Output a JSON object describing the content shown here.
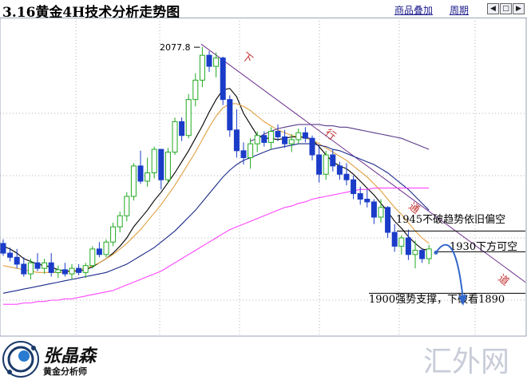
{
  "header": {
    "title": "3.16黄金4H技术分析走势图",
    "overlay_label": "商品叠加",
    "period_label": "周期"
  },
  "icons": {
    "nav_left": "arrow-left-icon",
    "nav_box": "window-icon",
    "nav_right": "arrow-right-icon"
  },
  "brand": {
    "name": "张晶森",
    "subtitle": "黄金分析师",
    "watermark": "汇外网"
  },
  "colors": {
    "up": "#22aa22",
    "down": "#1a3cc8",
    "ma_black": "#000000",
    "ma_orange": "#e0a040",
    "ma_navy": "#1a2a8a",
    "ma_purple": "#5a3a8a",
    "ma_magenta": "#ff44ff",
    "trend": "#6a2a8a",
    "arrow": "#3366cc"
  },
  "chart_data": {
    "type": "candlestick",
    "ylim": [
      1880,
      2090
    ],
    "max_label": "2077.8",
    "trend_text": [
      "下",
      "行",
      "通",
      "道"
    ],
    "annotations": [
      "1945不破趋势依旧偏空",
      "1930下方可空",
      "1900强势支撑，下破看1890"
    ],
    "levels": [
      1945,
      1930,
      1900
    ],
    "candles": [
      [
        1936,
        1939,
        1927,
        1929
      ],
      [
        1929,
        1933,
        1923,
        1926
      ],
      [
        1926,
        1932,
        1918,
        1921
      ],
      [
        1921,
        1926,
        1912,
        1914
      ],
      [
        1914,
        1925,
        1910,
        1922
      ],
      [
        1922,
        1929,
        1916,
        1918
      ],
      [
        1918,
        1925,
        1914,
        1922
      ],
      [
        1922,
        1929,
        1912,
        1915
      ],
      [
        1915,
        1920,
        1911,
        1917
      ],
      [
        1917,
        1922,
        1912,
        1914
      ],
      [
        1914,
        1921,
        1910,
        1918
      ],
      [
        1918,
        1921,
        1913,
        1915
      ],
      [
        1915,
        1922,
        1911,
        1920
      ],
      [
        1920,
        1934,
        1918,
        1932
      ],
      [
        1932,
        1937,
        1926,
        1928
      ],
      [
        1928,
        1939,
        1926,
        1937
      ],
      [
        1937,
        1951,
        1934,
        1948
      ],
      [
        1948,
        1959,
        1944,
        1956
      ],
      [
        1956,
        1973,
        1952,
        1970
      ],
      [
        1970,
        1994,
        1967,
        1992
      ],
      [
        1992,
        2003,
        1979,
        1981
      ],
      [
        1981,
        1998,
        1977,
        1987
      ],
      [
        1987,
        2006,
        1983,
        2004
      ],
      [
        2004,
        2003,
        1975,
        1982
      ],
      [
        1982,
        2005,
        1980,
        2002
      ],
      [
        2002,
        2027,
        2000,
        2024
      ],
      [
        2024,
        2027,
        2010,
        2014
      ],
      [
        2014,
        2044,
        2012,
        2040
      ],
      [
        2040,
        2059,
        2035,
        2054
      ],
      [
        2054,
        2078,
        2049,
        2072
      ],
      [
        2072,
        2075,
        2060,
        2064
      ],
      [
        2064,
        2074,
        2056,
        2070
      ],
      [
        2070,
        2071,
        2036,
        2040
      ],
      [
        2040,
        2043,
        2013,
        2018
      ],
      [
        2018,
        2033,
        1998,
        2003
      ],
      [
        2003,
        2009,
        1993,
        1998
      ],
      [
        1998,
        2012,
        1990,
        2008
      ],
      [
        2008,
        2017,
        2002,
        2014
      ],
      [
        2014,
        2017,
        2006,
        2009
      ],
      [
        2009,
        2020,
        2004,
        2017
      ],
      [
        2017,
        2022,
        2010,
        2013
      ],
      [
        2013,
        2018,
        2005,
        2008
      ],
      [
        2008,
        2015,
        2002,
        2011
      ],
      [
        2011,
        2019,
        2008,
        2016
      ],
      [
        2016,
        2020,
        2009,
        2012
      ],
      [
        2012,
        2014,
        1996,
        2000
      ],
      [
        2000,
        2006,
        1980,
        1986
      ],
      [
        1986,
        2003,
        1982,
        2000
      ],
      [
        2000,
        2004,
        1988,
        1992
      ],
      [
        1992,
        1995,
        1982,
        1986
      ],
      [
        1986,
        1994,
        1978,
        1982
      ],
      [
        1982,
        1985,
        1968,
        1972
      ],
      [
        1972,
        1977,
        1964,
        1968
      ],
      [
        1968,
        1975,
        1962,
        1966
      ],
      [
        1966,
        1968,
        1950,
        1955
      ],
      [
        1955,
        1968,
        1951,
        1962
      ],
      [
        1962,
        1963,
        1940,
        1944
      ],
      [
        1944,
        1950,
        1930,
        1934
      ],
      [
        1934,
        1942,
        1928,
        1940
      ],
      [
        1940,
        1946,
        1924,
        1928
      ],
      [
        1928,
        1938,
        1918,
        1931
      ],
      [
        1931,
        1932,
        1922,
        1925
      ],
      [
        1925,
        1935,
        1921,
        1932
      ]
    ],
    "ma_lines": [
      {
        "color": "#000000",
        "values": [
          1934,
          1932,
          1929,
          1925,
          1923,
          1921,
          1920,
          1919,
          1917,
          1916,
          1916,
          1916,
          1917,
          1919,
          1922,
          1925,
          1929,
          1934,
          1940,
          1948,
          1954,
          1960,
          1967,
          1973,
          1980,
          1987,
          1995,
          2003,
          2012,
          2021,
          2031,
          2040,
          2047,
          2048,
          2042,
          2030,
          2022,
          2014,
          2012,
          2012,
          2011,
          2012,
          2013,
          2013,
          2013,
          2011,
          2006,
          2000,
          1995,
          1992,
          1990,
          1986,
          1981,
          1976,
          1971,
          1965,
          1959,
          1952,
          1947,
          1941,
          1936,
          1932,
          1931
        ]
      },
      {
        "color": "#e0a040",
        "values": [
          1920,
          1919,
          1918,
          1917,
          1916,
          1915,
          1915,
          1915,
          1915,
          1915,
          1916,
          1917,
          1918,
          1920,
          1922,
          1925,
          1928,
          1932,
          1936,
          1941,
          1946,
          1952,
          1958,
          1964,
          1971,
          1978,
          1986,
          1994,
          2002,
          2011,
          2020,
          2028,
          2034,
          2037,
          2037,
          2035,
          2032,
          2028,
          2024,
          2021,
          2018,
          2016,
          2014,
          2013,
          2012,
          2011,
          2008,
          2005,
          2002,
          1999,
          1996,
          1992,
          1988,
          1984,
          1979,
          1974,
          1968,
          1962,
          1957,
          1951,
          1945,
          1940,
          1936
        ]
      },
      {
        "color": "#1a2a8a",
        "values": [
          1900,
          1901,
          1902,
          1903,
          1904,
          1905,
          1906,
          1907,
          1908,
          1909,
          1910,
          1911,
          1912,
          1913,
          1914,
          1915,
          1917,
          1919,
          1921,
          1924,
          1927,
          1930,
          1933,
          1937,
          1941,
          1945,
          1950,
          1955,
          1960,
          1966,
          1972,
          1978,
          1984,
          1989,
          1993,
          1996,
          1998,
          2000,
          2002,
          2004,
          2005,
          2006,
          2007,
          2008,
          2008,
          2008,
          2007,
          2006,
          2004,
          2003,
          2001,
          1999,
          1997,
          1995,
          1993,
          1990,
          1987,
          1983,
          1979,
          1975,
          1970,
          1965,
          1960
        ]
      },
      {
        "color": "#5a3a8a",
        "values": [
          null,
          null,
          null,
          null,
          null,
          null,
          null,
          null,
          null,
          null,
          null,
          null,
          null,
          null,
          null,
          null,
          null,
          null,
          null,
          null,
          null,
          null,
          null,
          null,
          null,
          null,
          null,
          null,
          null,
          null,
          null,
          null,
          null,
          null,
          null,
          null,
          2010,
          2012,
          2015,
          2017,
          2019,
          2020,
          2021,
          2022,
          2022,
          2022,
          2022,
          2021,
          2021,
          2020,
          2020,
          2019,
          2018,
          2017,
          2016,
          2015,
          2014,
          2013,
          2012,
          2010,
          2008,
          2006,
          2004
        ]
      },
      {
        "color": "#ff44ff",
        "values": [
          1892,
          1892,
          1892,
          1893,
          1893,
          1894,
          1894,
          1895,
          1895,
          1896,
          1896,
          1897,
          1898,
          1899,
          1900,
          1901,
          1902,
          1904,
          1906,
          1908,
          1910,
          1912,
          1914,
          1916,
          1919,
          1922,
          1925,
          1928,
          1931,
          1934,
          1937,
          1940,
          1943,
          1946,
          1948,
          1950,
          1952,
          1954,
          1956,
          1958,
          1960,
          1962,
          1963,
          1965,
          1966,
          1968,
          1969,
          1970,
          1971,
          1972,
          1973,
          1974,
          1975,
          1975,
          1976,
          1976,
          1976,
          1976,
          1976,
          1976,
          1976,
          1976,
          1976
        ]
      }
    ]
  }
}
